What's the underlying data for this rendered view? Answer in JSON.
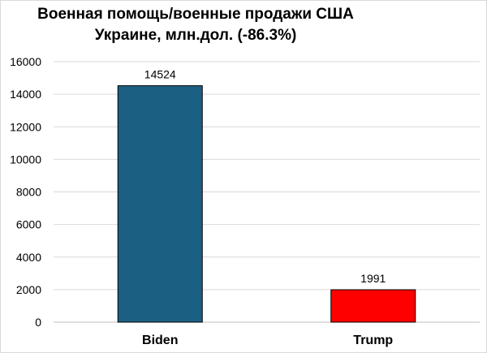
{
  "chart_data": {
    "type": "bar",
    "title_lines": [
      "Военная помощь/военные продажи США",
      "Украине, млн.дол. (-86.3%)"
    ],
    "categories": [
      "Biden",
      "Trump"
    ],
    "values": [
      14524,
      1991
    ],
    "bar_colors": [
      "#1b5f82",
      "#ff0000"
    ],
    "data_labels": [
      "14524",
      "1991"
    ],
    "ylim": [
      0,
      16000
    ],
    "yticks": [
      0,
      2000,
      4000,
      6000,
      8000,
      10000,
      12000,
      14000,
      16000
    ],
    "ytick_labels": [
      "0",
      "2000",
      "4000",
      "6000",
      "8000",
      "10000",
      "12000",
      "14000",
      "16000"
    ],
    "xlabel": "",
    "ylabel": "",
    "grid": true,
    "legend": "none"
  }
}
